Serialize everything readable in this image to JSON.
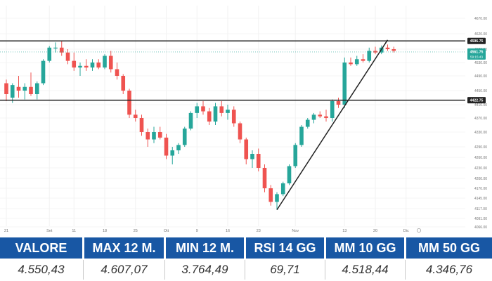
{
  "chart_data": {
    "type": "candlestick",
    "yticks": [
      4066,
      4091,
      4117,
      4145,
      4170,
      4200,
      4230,
      4260,
      4290,
      4330,
      4370,
      4410,
      4450,
      4490,
      4530,
      4570,
      4620,
      4670
    ],
    "ytick_labels": [
      "4066.00",
      "4091.00",
      "4117.00",
      "4145.00",
      "4170.00",
      "4200.00",
      "4230.00",
      "4260.00",
      "4290.00",
      "4330.00",
      "4370.00",
      "4410.00",
      "4450.00",
      "4490.00",
      "4530.00",
      "4570.00",
      "4620.00",
      "4670.00"
    ],
    "xticks": [
      {
        "label": "21",
        "index": 0
      },
      {
        "label": "Set",
        "index": 7
      },
      {
        "label": "11",
        "index": 11
      },
      {
        "label": "18",
        "index": 16
      },
      {
        "label": "25",
        "index": 21
      },
      {
        "label": "Ott",
        "index": 26
      },
      {
        "label": "9",
        "index": 31
      },
      {
        "label": "16",
        "index": 36
      },
      {
        "label": "23",
        "index": 41
      },
      {
        "label": "Nov",
        "index": 47
      },
      {
        "label": "13",
        "index": 55
      },
      {
        "label": "20",
        "index": 60
      },
      {
        "label": "Dic",
        "index": 65
      }
    ],
    "hlines": [
      4596.75,
      4422.75
    ],
    "hline_labels": [
      "4596.75",
      "4422.75"
    ],
    "price_label": "4561.75",
    "price_sublabel": "59:15:43",
    "trendline": {
      "from": {
        "index": 44,
        "price": 4114
      },
      "to": {
        "index": 62,
        "price": 4600
      }
    },
    "colors": {
      "up": "#26a69a",
      "down": "#ef5350",
      "line": "#222222",
      "price_tag": "#26a69a"
    },
    "candles": [
      {
        "o": 4470,
        "h": 4480,
        "l": 4420,
        "c": 4440
      },
      {
        "o": 4430,
        "h": 4470,
        "l": 4415,
        "c": 4465
      },
      {
        "o": 4460,
        "h": 4490,
        "l": 4430,
        "c": 4450
      },
      {
        "o": 4450,
        "h": 4470,
        "l": 4425,
        "c": 4460
      },
      {
        "o": 4460,
        "h": 4500,
        "l": 4435,
        "c": 4440
      },
      {
        "o": 4440,
        "h": 4475,
        "l": 4425,
        "c": 4470
      },
      {
        "o": 4470,
        "h": 4540,
        "l": 4465,
        "c": 4535
      },
      {
        "o": 4535,
        "h": 4580,
        "l": 4530,
        "c": 4575
      },
      {
        "o": 4575,
        "h": 4592,
        "l": 4560,
        "c": 4575
      },
      {
        "o": 4575,
        "h": 4598,
        "l": 4550,
        "c": 4560
      },
      {
        "o": 4560,
        "h": 4570,
        "l": 4525,
        "c": 4535
      },
      {
        "o": 4535,
        "h": 4560,
        "l": 4505,
        "c": 4515
      },
      {
        "o": 4515,
        "h": 4530,
        "l": 4490,
        "c": 4520
      },
      {
        "o": 4520,
        "h": 4540,
        "l": 4505,
        "c": 4515
      },
      {
        "o": 4515,
        "h": 4540,
        "l": 4505,
        "c": 4530
      },
      {
        "o": 4530,
        "h": 4540,
        "l": 4510,
        "c": 4515
      },
      {
        "o": 4515,
        "h": 4555,
        "l": 4510,
        "c": 4550
      },
      {
        "o": 4550,
        "h": 4565,
        "l": 4500,
        "c": 4510
      },
      {
        "o": 4510,
        "h": 4530,
        "l": 4480,
        "c": 4490
      },
      {
        "o": 4490,
        "h": 4495,
        "l": 4440,
        "c": 4450
      },
      {
        "o": 4450,
        "h": 4455,
        "l": 4370,
        "c": 4380
      },
      {
        "o": 4380,
        "h": 4395,
        "l": 4360,
        "c": 4370
      },
      {
        "o": 4370,
        "h": 4380,
        "l": 4320,
        "c": 4330
      },
      {
        "o": 4330,
        "h": 4340,
        "l": 4290,
        "c": 4310
      },
      {
        "o": 4310,
        "h": 4345,
        "l": 4300,
        "c": 4330
      },
      {
        "o": 4330,
        "h": 4345,
        "l": 4310,
        "c": 4315
      },
      {
        "o": 4315,
        "h": 4325,
        "l": 4255,
        "c": 4265
      },
      {
        "o": 4265,
        "h": 4290,
        "l": 4240,
        "c": 4280
      },
      {
        "o": 4280,
        "h": 4300,
        "l": 4270,
        "c": 4295
      },
      {
        "o": 4295,
        "h": 4345,
        "l": 4290,
        "c": 4340
      },
      {
        "o": 4340,
        "h": 4390,
        "l": 4335,
        "c": 4385
      },
      {
        "o": 4385,
        "h": 4415,
        "l": 4370,
        "c": 4405
      },
      {
        "o": 4405,
        "h": 4420,
        "l": 4380,
        "c": 4390
      },
      {
        "o": 4390,
        "h": 4400,
        "l": 4350,
        "c": 4360
      },
      {
        "o": 4360,
        "h": 4415,
        "l": 4350,
        "c": 4405
      },
      {
        "o": 4405,
        "h": 4420,
        "l": 4375,
        "c": 4385
      },
      {
        "o": 4385,
        "h": 4410,
        "l": 4365,
        "c": 4395
      },
      {
        "o": 4395,
        "h": 4405,
        "l": 4345,
        "c": 4355
      },
      {
        "o": 4355,
        "h": 4360,
        "l": 4300,
        "c": 4310
      },
      {
        "o": 4310,
        "h": 4315,
        "l": 4240,
        "c": 4255
      },
      {
        "o": 4255,
        "h": 4280,
        "l": 4230,
        "c": 4270
      },
      {
        "o": 4270,
        "h": 4285,
        "l": 4220,
        "c": 4230
      },
      {
        "o": 4230,
        "h": 4240,
        "l": 4160,
        "c": 4170
      },
      {
        "o": 4170,
        "h": 4180,
        "l": 4125,
        "c": 4135
      },
      {
        "o": 4135,
        "h": 4160,
        "l": 4114,
        "c": 4155
      },
      {
        "o": 4155,
        "h": 4190,
        "l": 4150,
        "c": 4185
      },
      {
        "o": 4185,
        "h": 4240,
        "l": 4180,
        "c": 4235
      },
      {
        "o": 4235,
        "h": 4300,
        "l": 4230,
        "c": 4295
      },
      {
        "o": 4295,
        "h": 4350,
        "l": 4290,
        "c": 4345
      },
      {
        "o": 4345,
        "h": 4370,
        "l": 4340,
        "c": 4365
      },
      {
        "o": 4365,
        "h": 4385,
        "l": 4355,
        "c": 4380
      },
      {
        "o": 4380,
        "h": 4390,
        "l": 4370,
        "c": 4375
      },
      {
        "o": 4375,
        "h": 4395,
        "l": 4360,
        "c": 4370
      },
      {
        "o": 4370,
        "h": 4425,
        "l": 4360,
        "c": 4420
      },
      {
        "o": 4420,
        "h": 4430,
        "l": 4400,
        "c": 4410
      },
      {
        "o": 4410,
        "h": 4545,
        "l": 4400,
        "c": 4530
      },
      {
        "o": 4530,
        "h": 4545,
        "l": 4520,
        "c": 4525
      },
      {
        "o": 4525,
        "h": 4550,
        "l": 4520,
        "c": 4540
      },
      {
        "o": 4540,
        "h": 4555,
        "l": 4530,
        "c": 4535
      },
      {
        "o": 4535,
        "h": 4575,
        "l": 4530,
        "c": 4565
      },
      {
        "o": 4565,
        "h": 4578,
        "l": 4555,
        "c": 4560
      },
      {
        "o": 4560,
        "h": 4582,
        "l": 4555,
        "c": 4575
      },
      {
        "o": 4575,
        "h": 4585,
        "l": 4565,
        "c": 4570
      },
      {
        "o": 4570,
        "h": 4578,
        "l": 4560,
        "c": 4565
      }
    ]
  },
  "stats": {
    "headers": [
      "VALORE",
      "MAX 12 M.",
      "MIN 12 M.",
      "RSI 14 GG",
      "MM 10 GG",
      "MM 50 GG"
    ],
    "values": [
      "4.550,43",
      "4.607,07",
      "3.764,49",
      "69,71",
      "4.518,44",
      "4.346,76"
    ],
    "header_bg": "#1857a4"
  }
}
